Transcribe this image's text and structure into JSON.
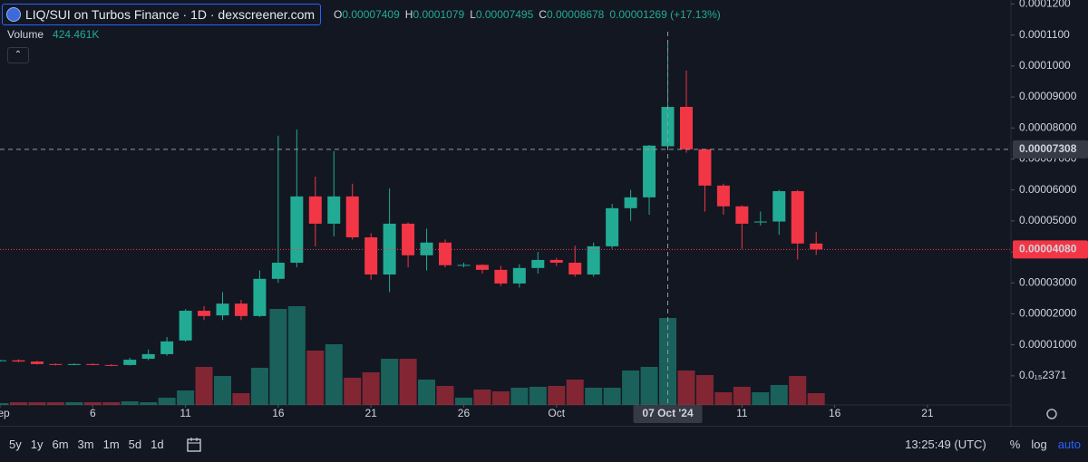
{
  "header": {
    "title": "LIQ/SUI on Turbos Finance · 1D · dexscreener.com",
    "o": "O",
    "h": "H",
    "l": "L",
    "c": "C",
    "change": "0.00001269 (+17.13%)",
    "volume_label": "Volume",
    "volume_value": "424.461K"
  },
  "chart_data": {
    "type": "candlestick",
    "up_color": "#22ab94",
    "down_color": "#f23645",
    "open": [
      4.8e-06,
      5e-06,
      4.6e-06,
      3.8e-06,
      3.6e-06,
      3.8e-06,
      3.5e-06,
      3.5e-06,
      5.5e-06,
      7e-06,
      1.14e-05,
      2.1e-05,
      1.95e-05,
      2.33e-05,
      1.93e-05,
      3.13e-05,
      3.65e-05,
      5.79e-05,
      4.91e-05,
      5.79e-05,
      4.47e-05,
      3.27e-05,
      4.91e-05,
      3.89e-05,
      4.3e-05,
      3.55e-05,
      3.58e-05,
      3.42e-05,
      2.98e-05,
      3.48e-05,
      3.74e-05,
      3.65e-05,
      3.27e-05,
      4.18e-05,
      5.41e-05,
      5.76e-05,
      7.409e-05,
      8.68e-05,
      7.31e-05,
      6.14e-05,
      5.47e-05,
      4.95e-05,
      4.98e-05,
      5.96e-05,
      4.27e-05
    ],
    "high": [
      5.2e-06,
      5.3e-06,
      4.8e-06,
      4e-06,
      4e-06,
      4e-06,
      3.7e-06,
      5.8e-06,
      8.5e-06,
      1.25e-05,
      2.15e-05,
      2.25e-05,
      2.7e-05,
      2.45e-05,
      3.4e-05,
      7.75e-05,
      7.95e-05,
      6.43e-05,
      7.25e-05,
      6.2e-05,
      4.6e-05,
      6.05e-05,
      4.95e-05,
      4.75e-05,
      4.4e-05,
      3.65e-05,
      3.6e-05,
      3.55e-05,
      3.6e-05,
      4e-05,
      3.8e-05,
      4.2e-05,
      4.3e-05,
      5.55e-05,
      6e-05,
      7.45e-05,
      0.0001079,
      9.85e-05,
      7.3e-05,
      6.2e-05,
      5.5e-05,
      5.3e-05,
      6e-05,
      6e-05,
      4.65e-05
    ],
    "low": [
      4.6e-06,
      4.4e-06,
      3.6e-06,
      3.4e-06,
      3.4e-06,
      3.4e-06,
      3.1e-06,
      3.3e-06,
      5e-06,
      6.5e-06,
      1.1e-05,
      1.8e-05,
      1.8e-05,
      1.8e-05,
      1.9e-05,
      3e-05,
      3.5e-05,
      4.18e-05,
      4.5e-05,
      4.4e-05,
      3.1e-05,
      2.7e-05,
      3.5e-05,
      3.4e-05,
      3.5e-05,
      3.5e-05,
      3.3e-05,
      2.9e-05,
      2.85e-05,
      3.3e-05,
      3.55e-05,
      3.2e-05,
      3.2e-05,
      4.1e-05,
      5e-05,
      5.2e-05,
      7.495e-05,
      7.2e-05,
      5.3e-05,
      5.2e-05,
      4.1e-05,
      4.85e-05,
      4.55e-05,
      3.75e-05,
      3.9e-05
    ],
    "close": [
      5e-06,
      4.6e-06,
      3.8e-06,
      3.6e-06,
      3.8e-06,
      3.5e-06,
      3.3e-06,
      5.2e-06,
      7e-06,
      1.11e-05,
      2.1e-05,
      1.93e-05,
      2.33e-05,
      1.93e-05,
      3.13e-05,
      3.65e-05,
      5.79e-05,
      4.91e-05,
      5.79e-05,
      4.47e-05,
      3.27e-05,
      4.91e-05,
      3.89e-05,
      4.3e-05,
      3.57e-05,
      3.58e-05,
      3.42e-05,
      2.98e-05,
      3.48e-05,
      3.74e-05,
      3.65e-05,
      3.27e-05,
      4.18e-05,
      5.41e-05,
      5.76e-05,
      7.43e-05,
      8.678e-05,
      7.31e-05,
      6.14e-05,
      5.47e-05,
      4.91e-05,
      4.98e-05,
      5.96e-05,
      4.27e-05,
      4.08e-05
    ],
    "volume": [
      65000,
      98000,
      98000,
      98000,
      98000,
      98000,
      98000,
      131000,
      98000,
      261000,
      522000,
      1371000,
      1045000,
      424000,
      1339000,
      3461000,
      3559000,
      1959000,
      2188000,
      980000,
      1175000,
      1665000,
      1665000,
      914000,
      686000,
      261000,
      555000,
      490000,
      620000,
      653000,
      686000,
      914000,
      620000,
      620000,
      1241000,
      1371000,
      3134000,
      1241000,
      1077000,
      457000,
      653000,
      457000,
      718000,
      1045000,
      424461
    ],
    "ylim": [
      -9.4e-06,
      0.0001213
    ],
    "yticks": [
      {
        "value": 0.00012,
        "label": "0.0001200"
      },
      {
        "value": 0.00011,
        "label": "0.0001100"
      },
      {
        "value": 0.0001,
        "label": "0.0001000"
      },
      {
        "value": 9e-05,
        "label": "0.00009000"
      },
      {
        "value": 8e-05,
        "label": "0.00008000"
      },
      {
        "value": 7e-05,
        "label": "0.00007000"
      },
      {
        "value": 6e-05,
        "label": "0.00006000"
      },
      {
        "value": 5e-05,
        "label": "0.00005000"
      },
      {
        "value": 4e-05,
        "label": "0.00004000"
      },
      {
        "value": 3e-05,
        "label": "0.00003000"
      },
      {
        "value": 2e-05,
        "label": "0.00002000"
      },
      {
        "value": 1e-05,
        "label": "0.00001000"
      },
      {
        "value": 2.371e-16,
        "label": "0.0₁₅2371"
      }
    ],
    "xlim": [
      0,
      54.5
    ],
    "xticks": [
      {
        "value": 0,
        "label": "Sep"
      },
      {
        "value": 5,
        "label": "6"
      },
      {
        "value": 10,
        "label": "11"
      },
      {
        "value": 15,
        "label": "16"
      },
      {
        "value": 20,
        "label": "21"
      },
      {
        "value": 25,
        "label": "26"
      },
      {
        "value": 30,
        "label": "Oct"
      },
      {
        "value": 40,
        "label": "11"
      },
      {
        "value": 45,
        "label": "16"
      },
      {
        "value": 50,
        "label": "21"
      }
    ],
    "last_price": {
      "value": 4.08e-05,
      "label": "0.00004080"
    },
    "crosshair": {
      "x": 36,
      "price": {
        "value": 7.308e-05,
        "label": "0.00007308"
      },
      "date_label": "07 Oct '24"
    }
  },
  "toolbar": {
    "ranges": [
      "5y",
      "1y",
      "6m",
      "3m",
      "1m",
      "5d",
      "1d"
    ],
    "time": "13:25:49 (UTC)",
    "percent": "%",
    "log": "log",
    "auto": "auto"
  }
}
